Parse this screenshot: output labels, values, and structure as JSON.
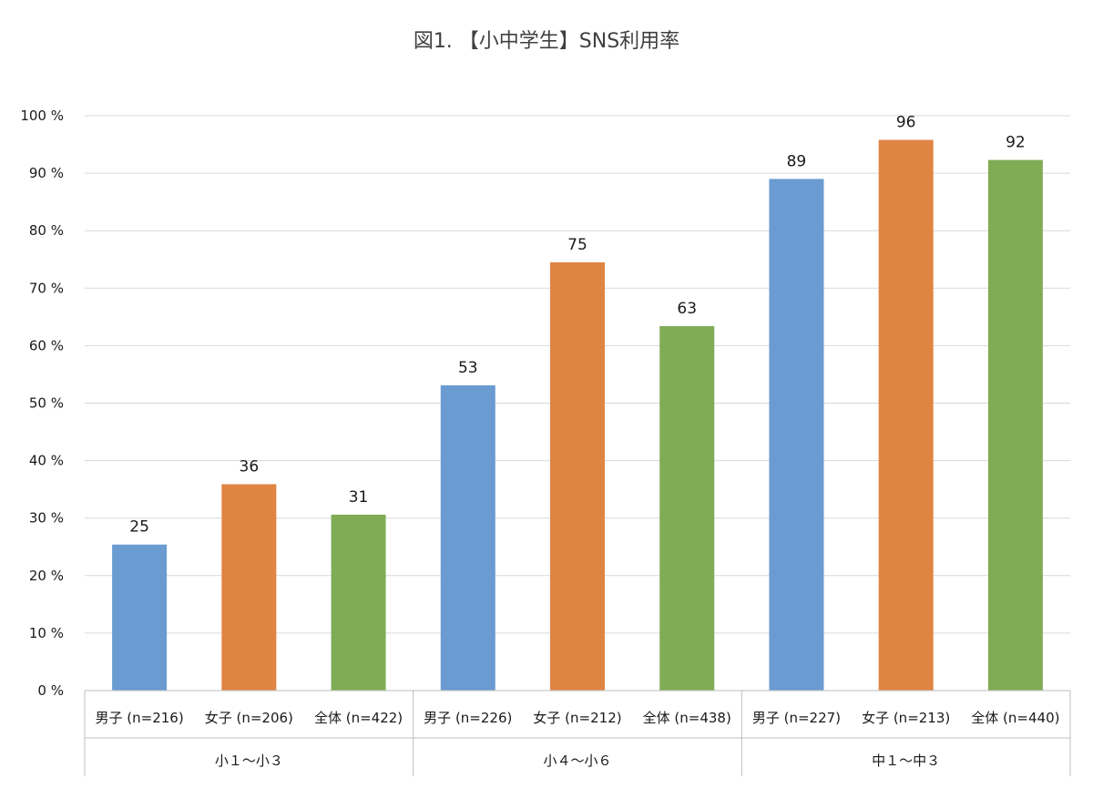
{
  "chart_data": {
    "type": "bar",
    "title": "図1. 【小中学生】SNS利用率",
    "xlabel": "",
    "ylabel": "",
    "ylim": [
      0,
      100
    ],
    "y_ticks": [
      0,
      10,
      20,
      30,
      40,
      50,
      60,
      70,
      80,
      90,
      100
    ],
    "y_tick_suffix": " %",
    "grid": true,
    "legend": "none",
    "groups": [
      {
        "label": "小１〜小３",
        "categories": [
          0,
          1,
          2
        ]
      },
      {
        "label": "小４〜小６",
        "categories": [
          3,
          4,
          5
        ]
      },
      {
        "label": "中１〜中３",
        "categories": [
          6,
          7,
          8
        ]
      }
    ],
    "categories": [
      "男子 (n=216)",
      "女子 (n=206)",
      "全体 (n=422)",
      "男子 (n=226)",
      "女子 (n=212)",
      "全体 (n=438)",
      "男子 (n=227)",
      "女子 (n=213)",
      "全体 (n=440)"
    ],
    "values": [
      25,
      36,
      31,
      53,
      75,
      63,
      89,
      96,
      92
    ],
    "bar_values_exact": [
      25.4,
      35.9,
      30.6,
      53.1,
      74.5,
      63.4,
      89.0,
      95.8,
      92.3
    ],
    "bar_colors": [
      "#6a9bd1",
      "#e08444",
      "#80ac55",
      "#6a9bd1",
      "#e08444",
      "#80ac55",
      "#6a9bd1",
      "#e08444",
      "#80ac55"
    ]
  }
}
